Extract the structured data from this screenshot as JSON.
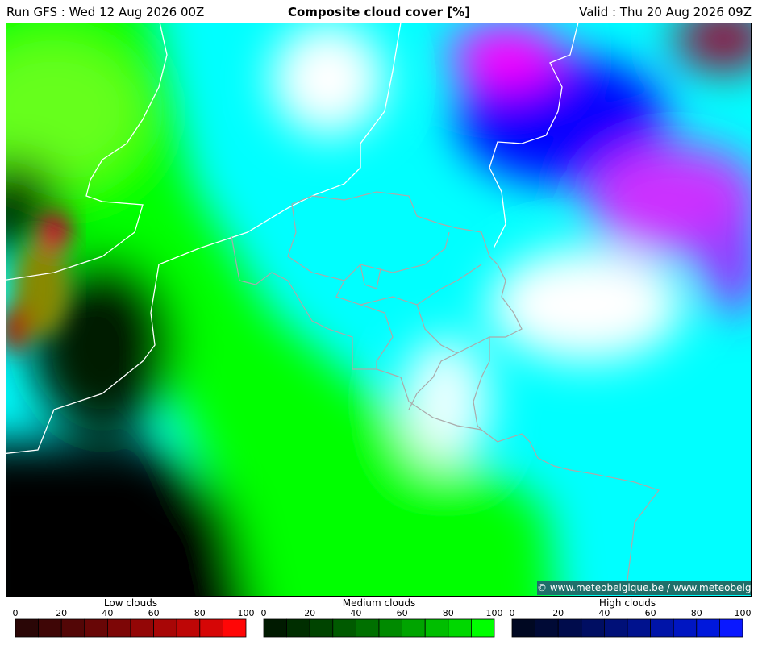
{
  "header": {
    "run": "Run GFS : Wed 12 Aug 2026 00Z",
    "title": "Composite cloud cover [%]",
    "valid": "Valid : Thu 20 Aug 2026 09Z"
  },
  "map": {
    "credit": "© www.meteobelgique.be / www.meteobelgie.be"
  },
  "legends": [
    {
      "title": "Low clouds",
      "ticks": [
        0,
        20,
        40,
        60,
        80,
        100
      ],
      "colors": [
        "#2a0606",
        "#3f0606",
        "#530606",
        "#680606",
        "#7d0606",
        "#930606",
        "#a80606",
        "#be0606",
        "#d60606",
        "#ff0606"
      ]
    },
    {
      "title": "Medium clouds",
      "ticks": [
        0,
        20,
        40,
        60,
        80,
        100
      ],
      "colors": [
        "#001a00",
        "#002e00",
        "#004400",
        "#005a00",
        "#007000",
        "#008a00",
        "#00a400",
        "#00be00",
        "#00d800",
        "#00ff00"
      ]
    },
    {
      "title": "High clouds",
      "ticks": [
        0,
        20,
        40,
        60,
        80,
        100
      ],
      "colors": [
        "#000822",
        "#000a36",
        "#000c4c",
        "#000e62",
        "#001078",
        "#00128e",
        "#0014a8",
        "#0016c2",
        "#0018dc",
        "#0a18ff"
      ]
    }
  ]
}
